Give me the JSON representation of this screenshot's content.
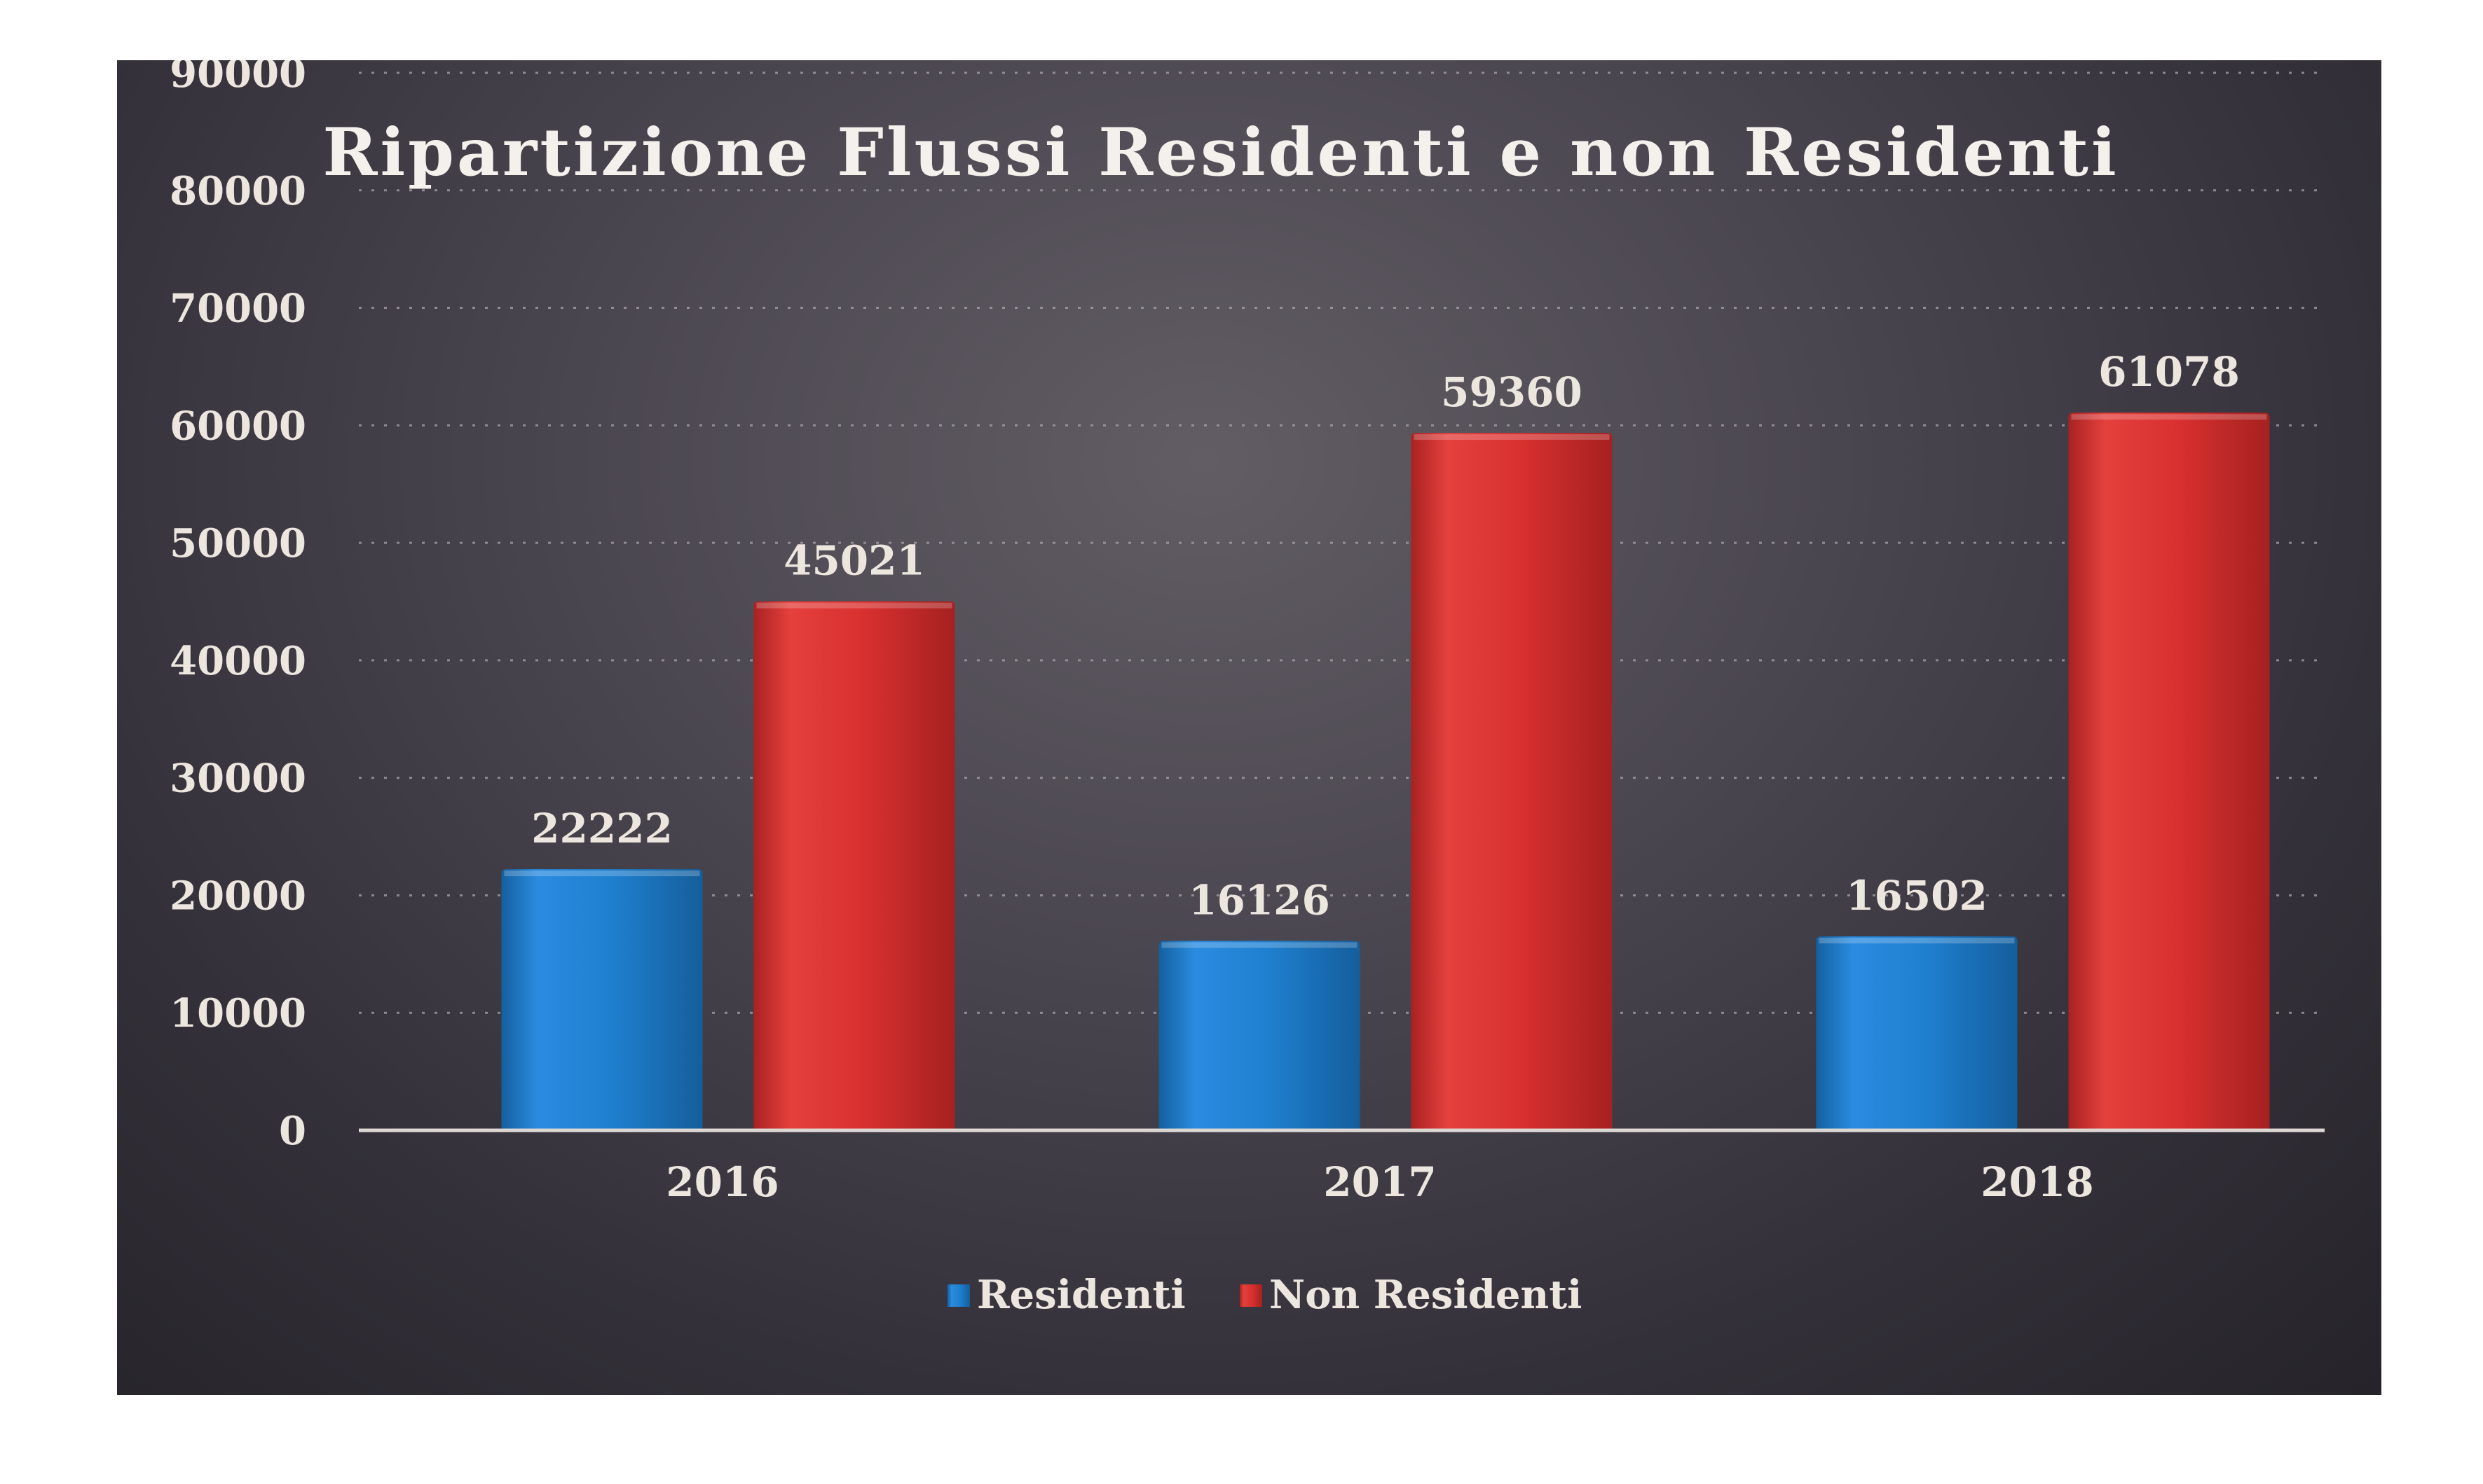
{
  "chart_data": {
    "type": "bar",
    "title": "Ripartizione Flussi Residenti e non Residenti",
    "xlabel": "",
    "ylabel": "",
    "categories": [
      "2016",
      "2017",
      "2018"
    ],
    "series": [
      {
        "name": "Residenti",
        "values": [
          22222,
          16126,
          16502
        ],
        "color": "#1f7fcf"
      },
      {
        "name": "Non Residenti",
        "values": [
          45021,
          59360,
          61078
        ],
        "color": "#d8302f"
      }
    ],
    "data_labels": [
      [
        "22222",
        "16126",
        "16502"
      ],
      [
        "45021",
        "59360",
        "61078"
      ]
    ],
    "ylim": [
      0,
      90000
    ],
    "yticks": [
      "0",
      "10000",
      "20000",
      "30000",
      "40000",
      "50000",
      "60000",
      "70000",
      "80000",
      "90000"
    ],
    "grid": true,
    "legend_position": "bottom-center"
  }
}
